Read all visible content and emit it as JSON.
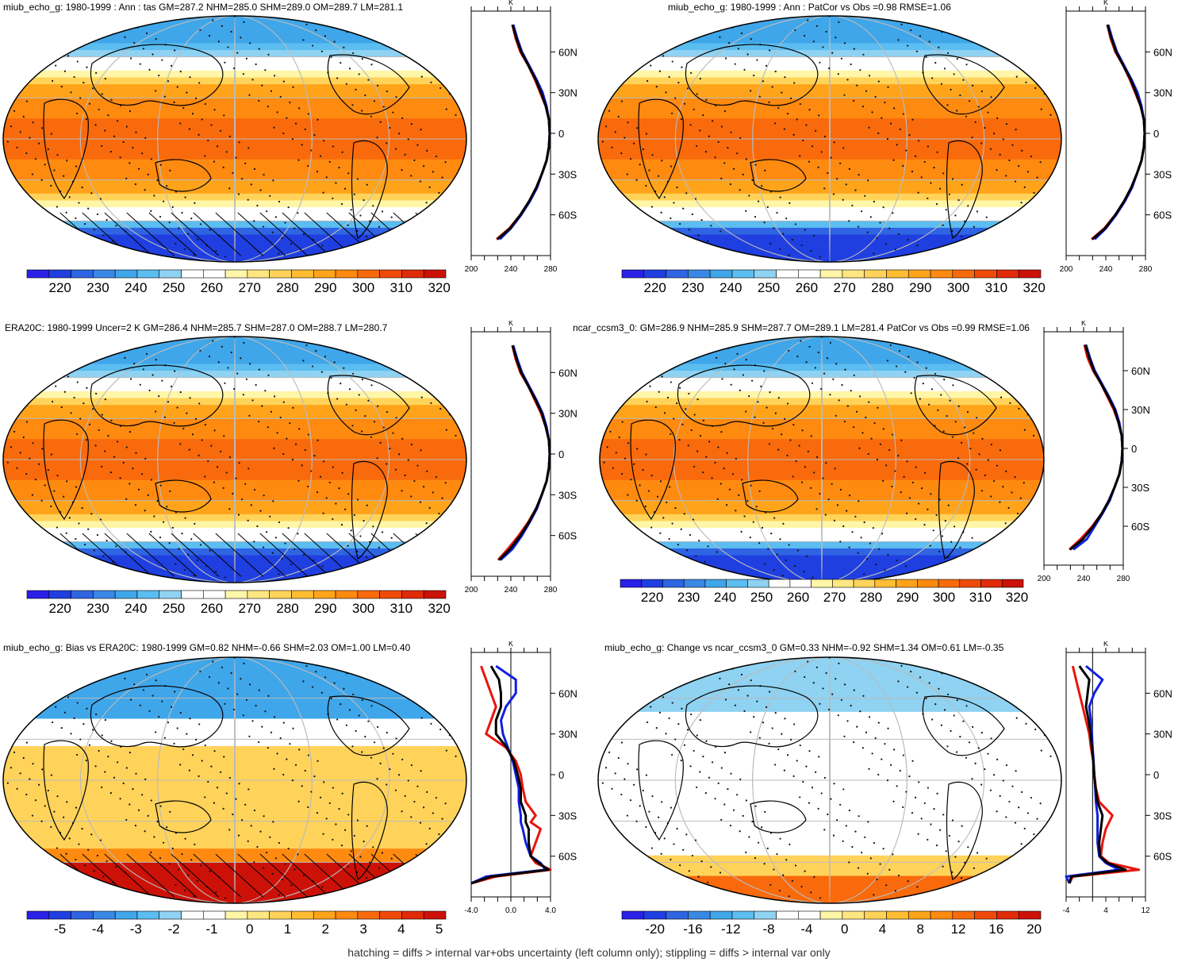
{
  "footnote": "hatching = diffs > internal var+obs uncertainty (left column only); stippling = diffs > internal var only",
  "colors": {
    "abs_palette": [
      "#2a20e8",
      "#1f3fe0",
      "#2f64e2",
      "#3a88e6",
      "#3fa6ea",
      "#5bbdf0",
      "#8fd2f2",
      "#ffffff",
      "#ffffff",
      "#fff6a8",
      "#ffe680",
      "#ffd35a",
      "#ffbd33",
      "#ffa41a",
      "#ff8a10",
      "#f86a0c",
      "#ef4a0a",
      "#e02a08",
      "#cc1208"
    ],
    "diff_palette": [
      "#2a20e8",
      "#1f3fe0",
      "#2f64e2",
      "#3a88e6",
      "#3fa6ea",
      "#5bbdf0",
      "#8fd2f2",
      "#ffffff",
      "#ffffff",
      "#fff6a8",
      "#ffe680",
      "#ffd35a",
      "#ffbd33",
      "#ffa41a",
      "#ff8a10",
      "#f86a0c",
      "#ef4a0a",
      "#e02a08",
      "#cc1208"
    ],
    "model_line": "#e8140c",
    "obs_line": "#1020e0",
    "mean_line": "#000000"
  },
  "panels": [
    {
      "title": "miub_echo_g: 1980-1999 : Ann : tas GM=287.2 NHM=285.0 SHM=289.0 OM=289.7 LM=281.1",
      "field": "abs",
      "hatching": true,
      "colorbar_labels": [
        "220",
        "230",
        "240",
        "250",
        "260",
        "270",
        "280",
        "290",
        "300",
        "310",
        "320"
      ],
      "chart_data": {
        "type": "line",
        "xlabel": "K",
        "x_ticks": [
          "200",
          "240",
          "280"
        ],
        "xlim": [
          200,
          300
        ],
        "ylim": [
          -90,
          90
        ],
        "y_ticks": [
          "60N",
          "30N",
          "0",
          "30S",
          "60S"
        ],
        "series": [
          {
            "name": "",
            "lat": [
              -78,
              -70,
              -60,
              -50,
              -40,
              -30,
              -20,
              -10,
              0,
              10,
              20,
              30,
              40,
              50,
              60,
              70,
              80
            ],
            "values": [
              232,
              248,
              262,
              273,
              282,
              289,
              295,
              298,
              299,
              298,
              294,
              287,
              280,
              272,
              262,
              256,
              252
            ]
          },
          {
            "name": "",
            "lat": [
              -78,
              -70,
              -60,
              -50,
              -40,
              -30,
              -20,
              -10,
              0,
              10,
              20,
              30,
              40,
              50,
              60,
              70,
              80
            ],
            "values": [
              236,
              250,
              263,
              274,
              283,
              289,
              295,
              298,
              299,
              298,
              295,
              290,
              282,
              273,
              264,
              258,
              253
            ]
          },
          {
            "name": "",
            "lat": [
              -78,
              -70,
              -60,
              -50,
              -40,
              -30,
              -20,
              -10,
              0,
              10,
              20,
              30,
              40,
              50,
              60,
              70,
              80
            ],
            "values": [
              233,
              249,
              262,
              273,
              282,
              289,
              295,
              298,
              299,
              298,
              294,
              288,
              281,
              272,
              263,
              257,
              252
            ]
          }
        ]
      }
    },
    {
      "title": "miub_echo_g: 1980-1999 : Ann : PatCor vs Obs =0.98 RMSE=1.06",
      "field": "abs",
      "hatching": false,
      "colorbar_labels": [
        "220",
        "230",
        "240",
        "250",
        "260",
        "270",
        "280",
        "290",
        "300",
        "310",
        "320"
      ],
      "chart_data": {
        "type": "line",
        "xlabel": "K",
        "x_ticks": [
          "200",
          "240",
          "280"
        ],
        "xlim": [
          200,
          300
        ],
        "ylim": [
          -90,
          90
        ],
        "y_ticks": [
          "60N",
          "30N",
          "0",
          "30S",
          "60S"
        ],
        "series": [
          {
            "name": "",
            "lat": [
              -78,
              -70,
              -60,
              -50,
              -40,
              -30,
              -20,
              -10,
              0,
              10,
              20,
              30,
              40,
              50,
              60,
              70,
              80
            ],
            "values": [
              232,
              248,
              262,
              273,
              282,
              289,
              295,
              298,
              299,
              298,
              294,
              287,
              280,
              272,
              262,
              256,
              252
            ]
          },
          {
            "name": "",
            "lat": [
              -78,
              -70,
              -60,
              -50,
              -40,
              -30,
              -20,
              -10,
              0,
              10,
              20,
              30,
              40,
              50,
              60,
              70,
              80
            ],
            "values": [
              236,
              250,
              263,
              274,
              283,
              289,
              295,
              298,
              299,
              298,
              295,
              290,
              282,
              273,
              264,
              258,
              253
            ]
          },
          {
            "name": "",
            "lat": [
              -78,
              -70,
              -60,
              -50,
              -40,
              -30,
              -20,
              -10,
              0,
              10,
              20,
              30,
              40,
              50,
              60,
              70,
              80
            ],
            "values": [
              233,
              249,
              262,
              273,
              282,
              289,
              295,
              298,
              299,
              298,
              294,
              288,
              281,
              272,
              263,
              257,
              252
            ]
          }
        ]
      }
    },
    {
      "title": "ERA20C: 1980-1999 Uncer=2 K GM=286.4 NHM=285.7 SHM=287.0 OM=288.7 LM=280.7",
      "field": "abs",
      "hatching": true,
      "colorbar_labels": [
        "220",
        "230",
        "240",
        "250",
        "260",
        "270",
        "280",
        "290",
        "300",
        "310",
        "320"
      ],
      "chart_data": {
        "type": "line",
        "xlabel": "K",
        "x_ticks": [
          "200",
          "240",
          "280"
        ],
        "xlim": [
          200,
          300
        ],
        "ylim": [
          -90,
          90
        ],
        "y_ticks": [
          "60N",
          "30N",
          "0",
          "30S",
          "60S"
        ],
        "series": [
          {
            "name": "",
            "lat": [
              -78,
              -70,
              -60,
              -50,
              -40,
              -30,
              -20,
              -10,
              0,
              10,
              20,
              30,
              40,
              50,
              60,
              70,
              80
            ],
            "values": [
              234,
              246,
              260,
              272,
              282,
              289,
              295,
              298,
              299,
              298,
              294,
              288,
              280,
              272,
              262,
              256,
              252
            ]
          },
          {
            "name": "",
            "lat": [
              -78,
              -70,
              -60,
              -50,
              -40,
              -30,
              -20,
              -10,
              0,
              10,
              20,
              30,
              40,
              50,
              60,
              70,
              80
            ],
            "values": [
              237,
              252,
              264,
              274,
              283,
              289,
              295,
              298,
              299,
              298,
              295,
              290,
              282,
              273,
              264,
              258,
              253
            ]
          },
          {
            "name": "",
            "lat": [
              -78,
              -70,
              -60,
              -50,
              -40,
              -30,
              -20,
              -10,
              0,
              10,
              20,
              30,
              40,
              50,
              60,
              70,
              80
            ],
            "values": [
              235,
              249,
              262,
              273,
              282,
              289,
              295,
              298,
              299,
              298,
              294,
              289,
              281,
              272,
              263,
              257,
              252
            ]
          }
        ]
      }
    },
    {
      "title": "ncar_ccsm3_0: GM=286.9 NHM=285.9 SHM=287.7 OM=289.1 LM=281.4 PatCor vs Obs =0.99 RMSE=1.06",
      "field": "abs",
      "hatching": false,
      "colorbar_labels": [
        "220",
        "230",
        "240",
        "250",
        "260",
        "270",
        "280",
        "290",
        "300",
        "310",
        "320"
      ],
      "chart_data": {
        "type": "line",
        "xlabel": "K",
        "x_ticks": [
          "200",
          "240",
          "280"
        ],
        "xlim": [
          200,
          300
        ],
        "ylim": [
          -90,
          90
        ],
        "y_ticks": [
          "60N",
          "30N",
          "0",
          "30S",
          "60S"
        ],
        "series": [
          {
            "name": "",
            "lat": [
              -78,
              -70,
              -60,
              -50,
              -40,
              -30,
              -20,
              -10,
              0,
              10,
              20,
              30,
              40,
              50,
              60,
              70,
              80
            ],
            "values": [
              232,
              246,
              261,
              273,
              282,
              289,
              295,
              298,
              299,
              298,
              294,
              288,
              280,
              272,
              262,
              255,
              251
            ]
          },
          {
            "name": "",
            "lat": [
              -78,
              -70,
              -60,
              -50,
              -40,
              -30,
              -20,
              -10,
              0,
              10,
              20,
              30,
              40,
              50,
              60,
              70,
              80
            ],
            "values": [
              237,
              254,
              264,
              274,
              283,
              289,
              295,
              298,
              299,
              298,
              295,
              290,
              282,
              273,
              264,
              258,
              253
            ]
          },
          {
            "name": "",
            "lat": [
              -78,
              -70,
              -60,
              -50,
              -40,
              -30,
              -20,
              -10,
              0,
              10,
              20,
              30,
              40,
              50,
              60,
              70,
              80
            ],
            "values": [
              233,
              249,
              262,
              273,
              282,
              289,
              295,
              298,
              299,
              298,
              294,
              289,
              281,
              272,
              263,
              257,
              252
            ]
          }
        ]
      }
    },
    {
      "title": "miub_echo_g: Bias vs ERA20C: 1980-1999 GM=0.82 NHM=-0.66 SHM=2.03 OM=1.00 LM=0.40",
      "field": "bias",
      "hatching": true,
      "colorbar_labels": [
        "-5",
        "-4",
        "-3",
        "-2",
        "-1",
        "0",
        "1",
        "2",
        "3",
        "4",
        "5"
      ],
      "chart_data": {
        "type": "line",
        "xlabel": "K",
        "x_ticks": [
          "-4.0",
          "0.0",
          "4.0"
        ],
        "xlim": [
          -4.0,
          4.0
        ],
        "ylim": [
          -90,
          90
        ],
        "y_ticks": [
          "60N",
          "30N",
          "0",
          "30S",
          "60S"
        ],
        "series": [
          {
            "name": "",
            "lat": [
              -80,
              -75,
              -70,
              -65,
              -60,
              -50,
              -40,
              -35,
              -30,
              -20,
              -10,
              0,
              10,
              20,
              30,
              40,
              50,
              60,
              70,
              80
            ],
            "values": [
              -4.0,
              -1.5,
              4.0,
              2.5,
              2.0,
              2.5,
              3.0,
              2.0,
              2.5,
              1.5,
              1.2,
              1.0,
              0.5,
              -0.5,
              -2.5,
              -2.0,
              -1.5,
              -2.0,
              -2.5,
              -3.0
            ]
          },
          {
            "name": "",
            "lat": [
              -80,
              -75,
              -70,
              -65,
              -60,
              -50,
              -40,
              -35,
              -30,
              -20,
              -10,
              0,
              10,
              20,
              30,
              40,
              50,
              60,
              70,
              80
            ],
            "values": [
              -4.0,
              -2.5,
              3.5,
              3.0,
              2.0,
              1.5,
              1.2,
              1.0,
              1.0,
              0.8,
              0.8,
              0.5,
              0.2,
              -0.3,
              -0.8,
              -1.0,
              -0.5,
              0.5,
              0.5,
              -1.5
            ]
          },
          {
            "name": "",
            "lat": [
              -80,
              -75,
              -70,
              -65,
              -60,
              -50,
              -40,
              -35,
              -30,
              -20,
              -10,
              0,
              10,
              20,
              30,
              40,
              50,
              60,
              70,
              80
            ],
            "values": [
              -4.0,
              -2.0,
              3.8,
              2.8,
              2.0,
              1.8,
              1.8,
              1.5,
              1.5,
              1.0,
              1.0,
              0.7,
              0.3,
              -0.4,
              -1.5,
              -1.5,
              -1.0,
              -1.0,
              -1.2,
              -2.0
            ]
          }
        ]
      }
    },
    {
      "title": "miub_echo_g: Change vs ncar_ccsm3_0 GM=0.33 NHM=-0.92 SHM=1.34 OM=0.61 LM=-0.35",
      "field": "change",
      "hatching": false,
      "colorbar_labels": [
        "-20",
        "-16",
        "-12",
        "-8",
        "-4",
        "0",
        "4",
        "8",
        "12",
        "16",
        "20"
      ],
      "chart_data": {
        "type": "line",
        "xlabel": "K",
        "x_ticks": [
          "-4",
          "4",
          "12"
        ],
        "xlim": [
          -8,
          16
        ],
        "ylim": [
          -90,
          90
        ],
        "y_ticks": [
          "60N",
          "30N",
          "0",
          "30S",
          "60S"
        ],
        "series": [
          {
            "name": "",
            "lat": [
              -80,
              -75,
              -70,
              -65,
              -60,
              -50,
              -40,
              -30,
              -20,
              -10,
              0,
              10,
              20,
              30,
              40,
              50,
              60,
              70,
              80
            ],
            "values": [
              -7.0,
              -6.0,
              14.0,
              5.0,
              2.5,
              3.0,
              4.0,
              6.0,
              2.0,
              1.0,
              0.5,
              0.2,
              -0.5,
              -1.0,
              -2.0,
              -3.0,
              -4.0,
              -5.0,
              -6.0
            ]
          },
          {
            "name": "",
            "lat": [
              -80,
              -75,
              -70,
              -65,
              -60,
              -50,
              -40,
              -30,
              -20,
              -10,
              0,
              10,
              20,
              30,
              40,
              50,
              60,
              70,
              80
            ],
            "values": [
              -7.0,
              -8.0,
              8.0,
              4.0,
              2.0,
              1.5,
              1.5,
              1.5,
              1.0,
              0.8,
              0.5,
              0.3,
              0.0,
              -0.2,
              -0.5,
              -1.0,
              0.5,
              3.0,
              -2.0
            ]
          },
          {
            "name": "",
            "lat": [
              -80,
              -75,
              -70,
              -65,
              -60,
              -50,
              -40,
              -30,
              -20,
              -10,
              0,
              10,
              20,
              30,
              40,
              50,
              60,
              70,
              80
            ],
            "values": [
              -7.0,
              -6.5,
              10.0,
              4.5,
              2.2,
              2.0,
              2.5,
              3.0,
              1.5,
              0.9,
              0.5,
              0.2,
              -0.2,
              -0.6,
              -1.2,
              -2.0,
              -1.5,
              -1.0,
              -4.0
            ]
          }
        ]
      }
    }
  ]
}
